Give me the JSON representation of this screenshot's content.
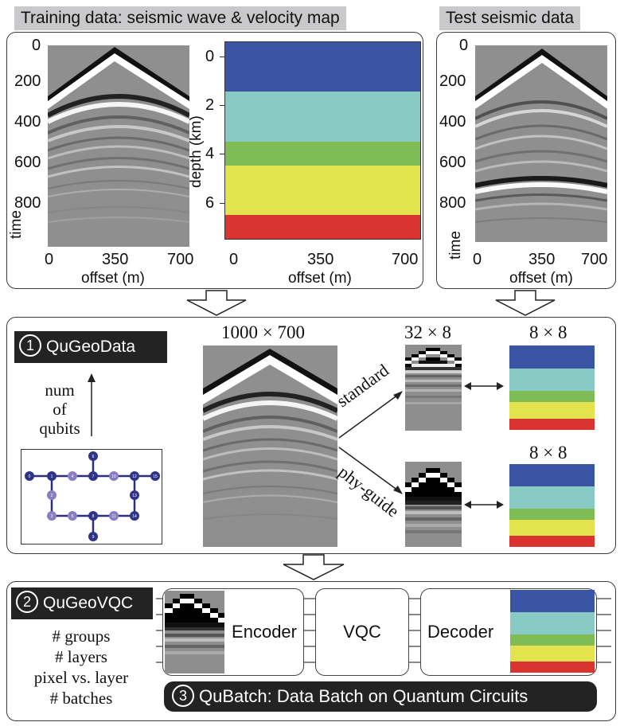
{
  "training": {
    "header": "Training data: seismic wave & velocity map",
    "seismic": {
      "y_ticks": [
        "0",
        "200",
        "400",
        "600",
        "800"
      ],
      "y_label": "time",
      "x_ticks": [
        "0",
        "350",
        "700"
      ],
      "x_label": "offset (m)"
    },
    "velocity": {
      "y_ticks": [
        "0",
        "2",
        "4",
        "6"
      ],
      "y_label": "depth (km)",
      "x_ticks": [
        "0",
        "350",
        "700"
      ],
      "x_label": "offset (m)",
      "layers": [
        {
          "color": "#3a55a4",
          "fraction": 0.21
        },
        {
          "color": "#88cbc4",
          "fraction": 0.21
        },
        {
          "color": "#80bc55",
          "fraction": 0.1
        },
        {
          "color": "#e2e34f",
          "fraction": 0.21
        },
        {
          "color": "#d9342f",
          "fraction": 0.1
        }
      ]
    }
  },
  "test": {
    "header": "Test seismic data",
    "y_ticks": [
      "0",
      "200",
      "400",
      "600",
      "800"
    ],
    "y_label": "time",
    "x_ticks": [
      "0",
      "350",
      "700"
    ],
    "x_label": "offset (m)"
  },
  "qugeodata": {
    "badge_num": "1",
    "badge_label": "QuGeoData",
    "qubits_label": [
      "num",
      "of",
      "qubits"
    ],
    "size_full": "1000 × 700",
    "size_standard": "32 × 8",
    "size_map_top": "8 × 8",
    "size_map_bottom": "8 × 8",
    "arrow_standard": "standard",
    "arrow_phy": "phy-guide",
    "qubit_nodes": [
      "0",
      "1",
      "2",
      "3",
      "4",
      "5",
      "6",
      "7",
      "8",
      "9",
      "10",
      "11",
      "12",
      "13",
      "14",
      "15"
    ],
    "map_layers": [
      {
        "color": "#3a55a4",
        "fraction": 0.27
      },
      {
        "color": "#88cbc4",
        "fraction": 0.27
      },
      {
        "color": "#80bc55",
        "fraction": 0.13
      },
      {
        "color": "#e2e34f",
        "fraction": 0.2
      },
      {
        "color": "#d9342f",
        "fraction": 0.13
      }
    ]
  },
  "qugeovqc": {
    "badge_num": "2",
    "badge_label": "QuGeoVQC",
    "params": [
      "# groups",
      "# layers",
      "pixel vs. layer",
      "# batches"
    ],
    "encoder": "Encoder",
    "vqc": "VQC",
    "decoder": "Decoder"
  },
  "qubatch": {
    "badge_num": "3",
    "label": "QuBatch: Data Batch on Quantum Circuits"
  }
}
